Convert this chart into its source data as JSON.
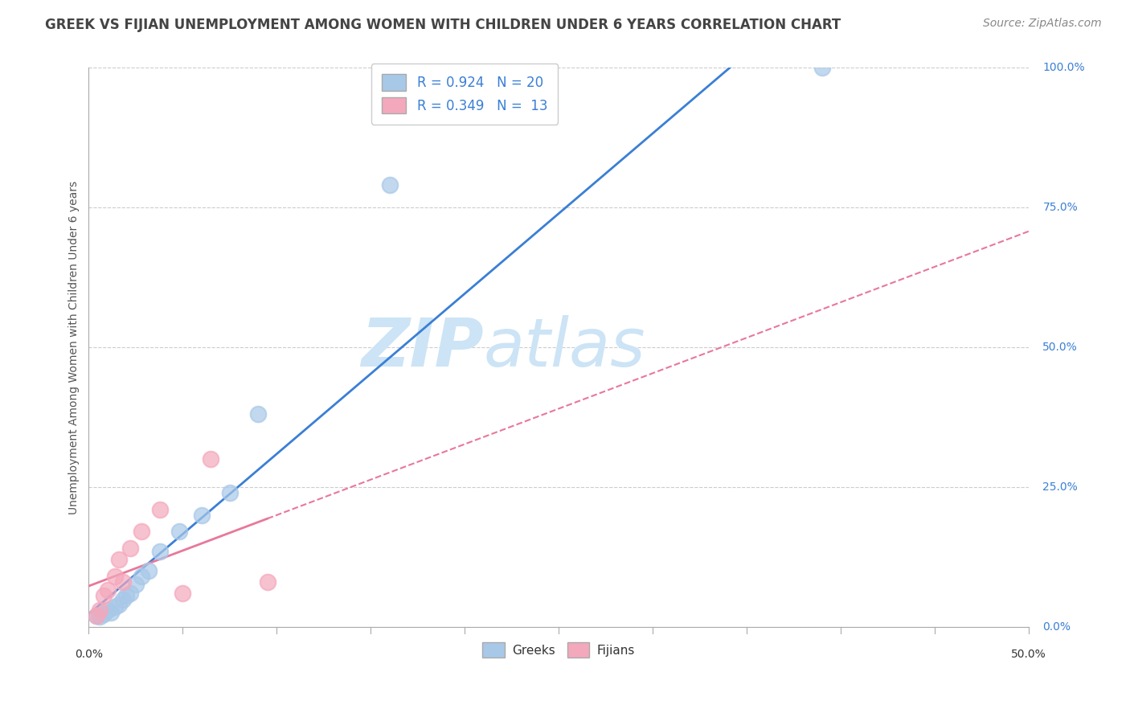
{
  "title": "GREEK VS FIJIAN UNEMPLOYMENT AMONG WOMEN WITH CHILDREN UNDER 6 YEARS CORRELATION CHART",
  "source": "Source: ZipAtlas.com",
  "ylabel_label": "Unemployment Among Women with Children Under 6 years",
  "xlim": [
    0.0,
    0.5
  ],
  "ylim": [
    0.0,
    1.0
  ],
  "watermark_zip": "ZIP",
  "watermark_atlas": "atlas",
  "legend_label1": "R = 0.924   N = 20",
  "legend_label2": "R = 0.349   N =  13",
  "legend_group1": "Greeks",
  "legend_group2": "Fijians",
  "greek_color": "#a8c8e8",
  "fijian_color": "#f4a8bc",
  "greek_line_color": "#3a7fd5",
  "fijian_line_color": "#e8789a",
  "title_fontsize": 12,
  "source_fontsize": 10,
  "axis_label_fontsize": 10,
  "tick_fontsize": 10,
  "watermark_fontsize_zip": 60,
  "watermark_fontsize_atlas": 60,
  "watermark_color": "#cce4f5",
  "background_color": "#ffffff",
  "grid_color": "#cccccc",
  "greek_points_x": [
    0.004,
    0.006,
    0.008,
    0.01,
    0.012,
    0.014,
    0.016,
    0.018,
    0.02,
    0.022,
    0.025,
    0.028,
    0.032,
    0.038,
    0.048,
    0.06,
    0.075,
    0.09,
    0.16,
    0.39
  ],
  "greek_points_y": [
    0.02,
    0.018,
    0.022,
    0.03,
    0.025,
    0.035,
    0.04,
    0.048,
    0.055,
    0.06,
    0.075,
    0.09,
    0.1,
    0.135,
    0.17,
    0.2,
    0.24,
    0.38,
    0.79,
    1.0
  ],
  "fijian_points_x": [
    0.004,
    0.006,
    0.008,
    0.01,
    0.014,
    0.016,
    0.018,
    0.022,
    0.028,
    0.038,
    0.05,
    0.065,
    0.095
  ],
  "fijian_points_y": [
    0.02,
    0.03,
    0.055,
    0.065,
    0.09,
    0.12,
    0.08,
    0.14,
    0.17,
    0.21,
    0.06,
    0.3,
    0.08
  ],
  "ytick_vals": [
    0.0,
    0.25,
    0.5,
    0.75,
    1.0
  ],
  "ytick_labels": [
    "0.0%",
    "25.0%",
    "50.0%",
    "75.0%",
    "100.0%"
  ],
  "xtick_vals": [
    0.0,
    0.5
  ],
  "xtick_labels": [
    "0.0%",
    "50.0%"
  ]
}
